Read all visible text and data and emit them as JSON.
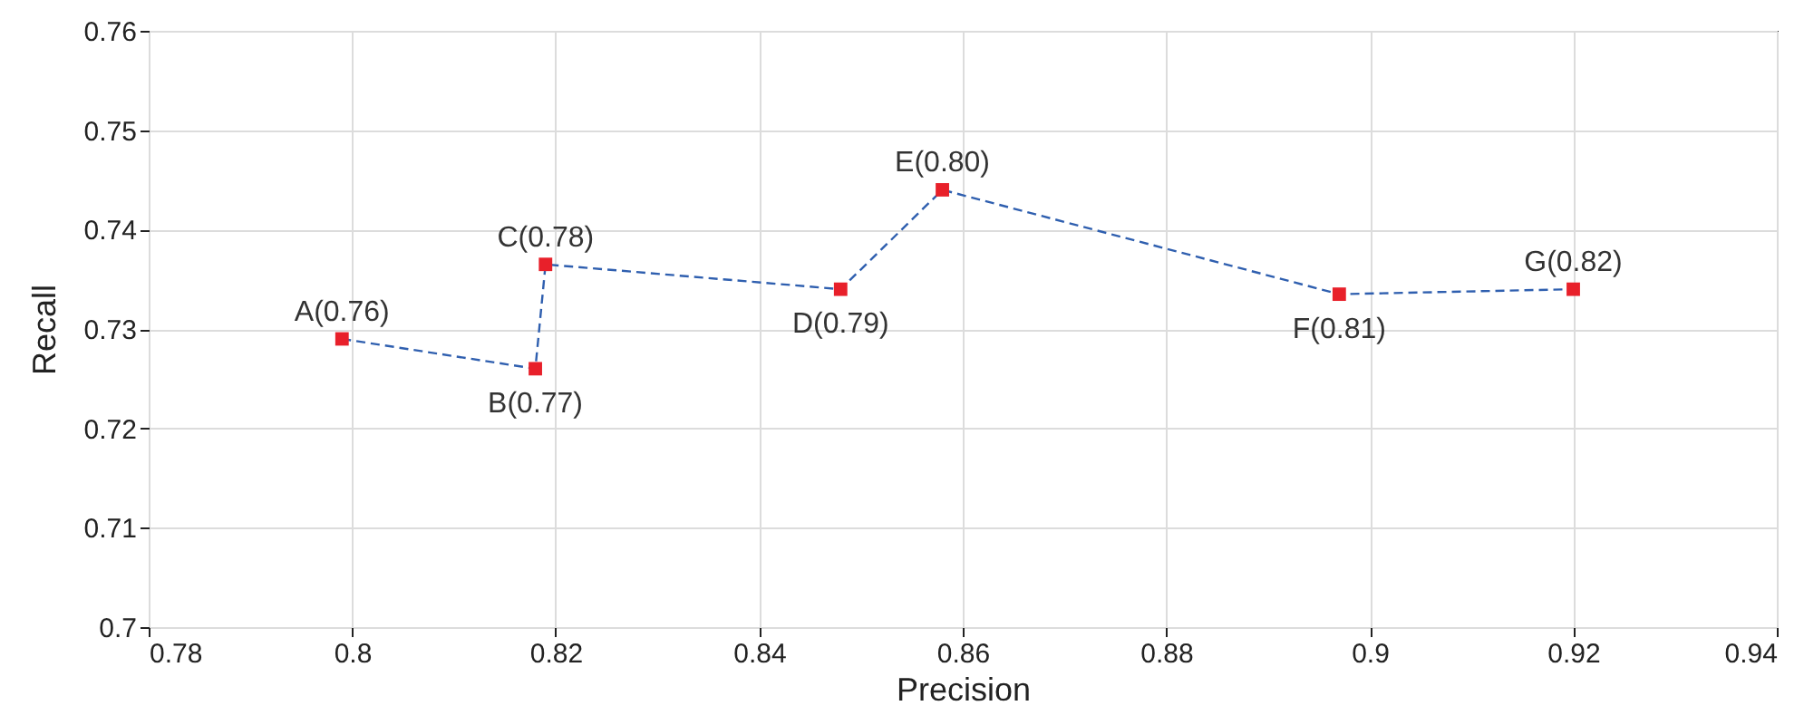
{
  "chart_data": {
    "type": "line",
    "xlabel": "Precision",
    "ylabel": "Recall",
    "xlim": [
      0.78,
      0.94
    ],
    "xticks": [
      0.78,
      0.8,
      0.82,
      0.84,
      0.86,
      0.88,
      0.9,
      0.92,
      0.94
    ],
    "ylim": [
      0.7,
      0.76
    ],
    "yticks": [
      0.7,
      0.71,
      0.72,
      0.73,
      0.74,
      0.75,
      0.76
    ],
    "grid": true,
    "line_style": "dashed",
    "series": [
      {
        "marker": "none",
        "color": "#2f5faf",
        "x": [
          0.799,
          0.818,
          0.819,
          0.848,
          0.858,
          0.897,
          0.92
        ],
        "values": [
          0.729,
          0.726,
          0.7365,
          0.734,
          0.744,
          0.7335,
          0.734
        ]
      },
      {
        "type": "scatter",
        "marker": "square",
        "color": "#e8202a",
        "x": [
          0.799,
          0.818,
          0.819,
          0.848,
          0.858,
          0.897,
          0.92
        ],
        "values": [
          0.729,
          0.726,
          0.7365,
          0.734,
          0.744,
          0.7335,
          0.734
        ]
      }
    ],
    "annotations": [
      {
        "text": "A(0.76)",
        "x": 0.799,
        "y": 0.729
      },
      {
        "text": "B(0.77)",
        "x": 0.818,
        "y": 0.726
      },
      {
        "text": "C(0.78)",
        "x": 0.819,
        "y": 0.7365
      },
      {
        "text": "D(0.79)",
        "x": 0.848,
        "y": 0.734
      },
      {
        "text": "E(0.80)",
        "x": 0.858,
        "y": 0.744
      },
      {
        "text": "F(0.81)",
        "x": 0.897,
        "y": 0.7335
      },
      {
        "text": "G(0.82)",
        "x": 0.92,
        "y": 0.734
      }
    ]
  }
}
